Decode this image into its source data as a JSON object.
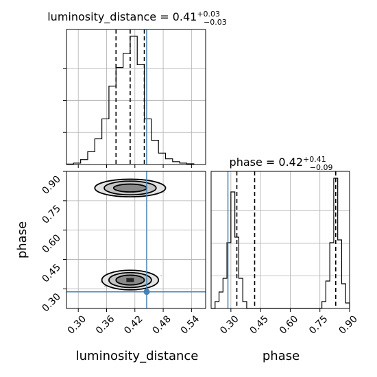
{
  "chart_data": {
    "type": "corner",
    "parameters": [
      "luminosity_distance",
      "phase"
    ],
    "truth": {
      "luminosity_distance": 0.445,
      "phase": 0.285
    },
    "titles": [
      {
        "param": "luminosity_distance",
        "name": "luminosity_distance = 0.41",
        "plus": "+0.03",
        "minus": "−0.03"
      },
      {
        "param": "phase",
        "name": "phase = 0.42",
        "plus": "+0.41",
        "minus": "−0.09"
      }
    ],
    "xlabels": [
      "luminosity_distance",
      "phase"
    ],
    "ylabel": "phase",
    "ticks": {
      "luminosity_distance": [
        "0.30",
        "0.36",
        "0.42",
        "0.48",
        "0.54"
      ],
      "phase": [
        "0.30",
        "0.45",
        "0.60",
        "0.75",
        "0.90"
      ]
    },
    "axes_ranges": {
      "luminosity_distance": [
        0.275,
        0.57
      ],
      "phase": [
        0.2,
        0.9
      ]
    },
    "quantile_lines": {
      "luminosity_distance": [
        0.38,
        0.41,
        0.44
      ],
      "phase": [
        0.33,
        0.42,
        0.83
      ]
    },
    "hist_luminosity_distance": {
      "bin_edges": [
        0.275,
        0.29,
        0.305,
        0.32,
        0.335,
        0.35,
        0.365,
        0.38,
        0.395,
        0.41,
        0.425,
        0.44,
        0.455,
        0.47,
        0.485,
        0.5,
        0.515,
        0.53,
        0.545
      ],
      "counts": [
        0.003,
        0.01,
        0.035,
        0.09,
        0.18,
        0.32,
        0.55,
        0.68,
        0.78,
        0.9,
        0.7,
        0.32,
        0.17,
        0.08,
        0.04,
        0.02,
        0.01,
        0.005
      ]
    },
    "hist_phase": {
      "bin_edges": [
        0.2,
        0.22,
        0.24,
        0.26,
        0.28,
        0.3,
        0.32,
        0.34,
        0.36,
        0.38,
        0.4,
        0.42,
        0.44,
        0.46,
        0.48,
        0.5,
        0.52,
        0.54,
        0.56,
        0.58,
        0.6,
        0.62,
        0.64,
        0.66,
        0.68,
        0.7,
        0.72,
        0.74,
        0.76,
        0.78,
        0.8,
        0.82,
        0.84,
        0.86,
        0.88,
        0.9
      ],
      "counts": [
        0.0,
        0.05,
        0.12,
        0.22,
        0.48,
        0.85,
        0.52,
        0.22,
        0.05,
        0.0,
        0.0,
        0.0,
        0.0,
        0.0,
        0.0,
        0.0,
        0.0,
        0.0,
        0.0,
        0.0,
        0.0,
        0.0,
        0.0,
        0.0,
        0.0,
        0.0,
        0.0,
        0.0,
        0.05,
        0.2,
        0.48,
        0.95,
        0.5,
        0.18,
        0.04
      ]
    },
    "contours": [
      {
        "level": "outer",
        "modes": [
          {
            "cx": 0.41,
            "cy": 0.815,
            "rx": 0.075,
            "ry": 0.045
          },
          {
            "cx": 0.41,
            "cy": 0.345,
            "rx": 0.06,
            "ry": 0.05
          }
        ]
      },
      {
        "level": "middle",
        "modes": [
          {
            "cx": 0.41,
            "cy": 0.815,
            "rx": 0.055,
            "ry": 0.035
          },
          {
            "cx": 0.41,
            "cy": 0.345,
            "rx": 0.045,
            "ry": 0.038
          }
        ]
      },
      {
        "level": "inner",
        "modes": [
          {
            "cx": 0.41,
            "cy": 0.815,
            "rx": 0.035,
            "ry": 0.02
          },
          {
            "cx": 0.41,
            "cy": 0.345,
            "rx": 0.03,
            "ry": 0.025
          }
        ]
      }
    ],
    "grid": true
  }
}
